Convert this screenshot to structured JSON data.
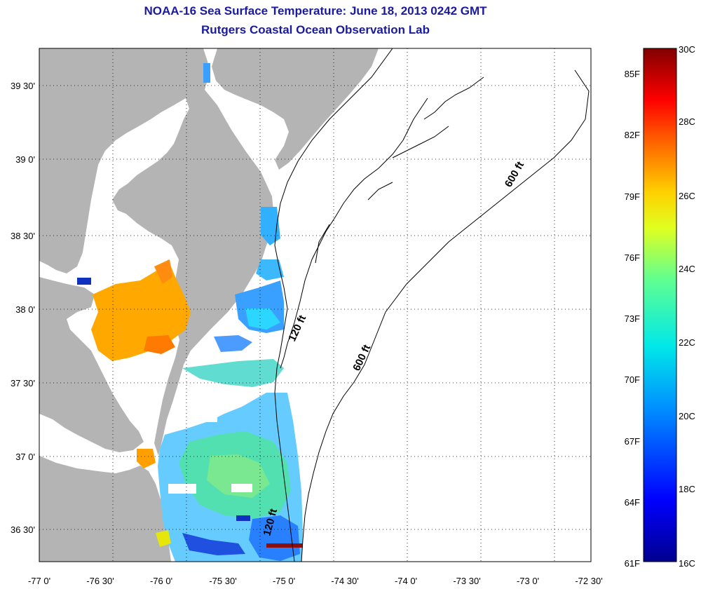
{
  "header": {
    "title": "NOAA-16 Sea Surface Temperature:  June 18, 2013 0242 GMT",
    "subtitle": "Rutgers Coastal Ocean Observation Lab"
  },
  "map": {
    "lon_ticks": [
      "-77 0'",
      "-76 30'",
      "-76 0'",
      "-75 30'",
      "-75 0'",
      "-74 30'",
      "-74 0'",
      "-73 30'",
      "-73 0'",
      "-72 30'"
    ],
    "lat_ticks": [
      "39 30'",
      "39 0'",
      "38 30'",
      "38 0'",
      "37 30'",
      "37 0'",
      "36 30'"
    ],
    "contour_labels": [
      "600 ft",
      "600 ft",
      "120 ft",
      "120 ft"
    ],
    "colors": {
      "land": "#b4b4b4",
      "water_nodata": "#ffffff",
      "contour": "#000000"
    }
  },
  "colorbar": {
    "fahrenheit": [
      "85F",
      "82F",
      "79F",
      "76F",
      "73F",
      "70F",
      "67F",
      "64F",
      "61F"
    ],
    "celsius": [
      "30C",
      "28C",
      "26C",
      "24C",
      "22C",
      "20C",
      "18C",
      "16C"
    ],
    "range_c": [
      16,
      30
    ]
  }
}
